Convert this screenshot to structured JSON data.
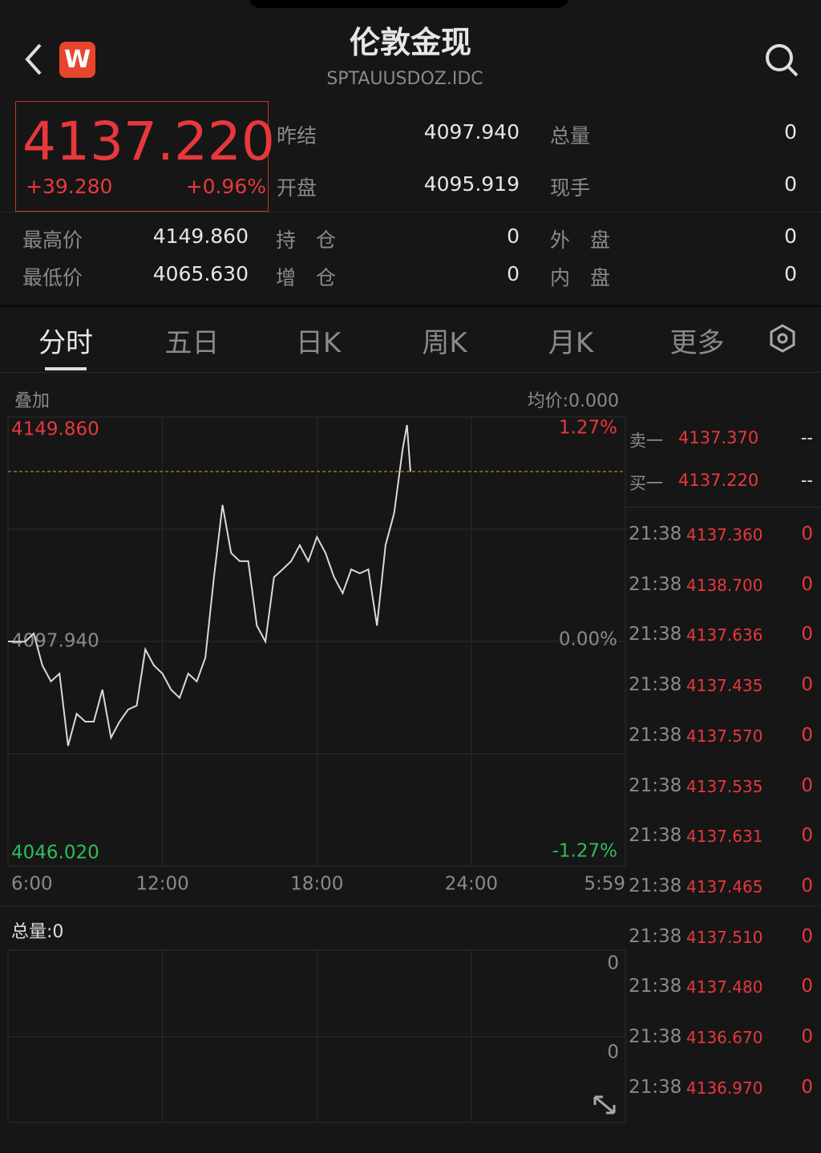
{
  "header": {
    "title": "伦敦金现",
    "code": "SPTAUUSDOZ.IDC",
    "badge": "W"
  },
  "quote": {
    "price": "4137.220",
    "change": "+39.280",
    "change_pct": "+0.96%"
  },
  "stats": {
    "top": [
      [
        "昨结",
        "4097.940",
        "总量",
        "0"
      ],
      [
        "开盘",
        "4095.919",
        "现手",
        "0"
      ]
    ],
    "bottom": [
      [
        "最高价",
        "4149.860",
        "持　仓",
        "0",
        "外　盘",
        "0"
      ],
      [
        "最低价",
        "4065.630",
        "增　仓",
        "0",
        "内　盘",
        "0"
      ]
    ]
  },
  "tabs": [
    "分时",
    "五日",
    "日K",
    "周K",
    "月K",
    "更多"
  ],
  "chart_header": {
    "left": "叠加",
    "right": "均价:0.000"
  },
  "chart_data": {
    "type": "line",
    "x": [
      "6:00",
      "6:20",
      "6:40",
      "7:00",
      "7:20",
      "7:40",
      "8:00",
      "8:20",
      "8:40",
      "9:00",
      "9:20",
      "9:40",
      "10:00",
      "10:20",
      "10:40",
      "11:00",
      "11:20",
      "11:40",
      "12:00",
      "12:20",
      "12:40",
      "13:00",
      "13:20",
      "13:40",
      "14:00",
      "14:20",
      "14:40",
      "15:00",
      "15:20",
      "15:40",
      "16:00",
      "16:20",
      "16:40",
      "17:00",
      "17:20",
      "17:40",
      "18:00",
      "18:20",
      "18:40",
      "19:00",
      "19:20",
      "19:40",
      "20:00",
      "20:20",
      "20:40",
      "21:00",
      "21:20",
      "21:30",
      "21:38"
    ],
    "series": [
      {
        "color": "#d9d9d9",
        "values": [
          4097.94,
          4097.9,
          4097.9,
          4099.8,
          4092.4,
          4088.7,
          4090.5,
          4073.8,
          4081.2,
          4079.4,
          4079.4,
          4086.8,
          4075.7,
          4079.4,
          4082.2,
          4083.1,
          4096.1,
          4092.4,
          4090.5,
          4086.8,
          4084.9,
          4090.5,
          4088.7,
          4094.2,
          4112.8,
          4129.5,
          4118.4,
          4116.5,
          4116.5,
          4101.6,
          4097.9,
          4112.8,
          4114.6,
          4116.5,
          4120.2,
          4116.5,
          4122.1,
          4118.4,
          4112.8,
          4109.1,
          4114.6,
          4113.7,
          4114.6,
          4101.6,
          4120.2,
          4127.6,
          4142.5,
          4148.0,
          4137.22
        ]
      }
    ],
    "xlim": [
      "6:00",
      "5:59"
    ],
    "xticks": [
      "6:00",
      "12:00",
      "18:00",
      "24:00",
      "5:59"
    ],
    "ylim": [
      4046.02,
      4149.86
    ],
    "yticks": [
      {
        "value": 4046.02,
        "label": "4046.020"
      },
      {
        "value": 4097.94,
        "label": "4097.940"
      },
      {
        "value": 4149.86,
        "label": "4149.860"
      }
    ],
    "y2lim": [
      -1.27,
      1.27
    ],
    "y2ticks": [
      {
        "value": -1.27,
        "label": "-1.27%"
      },
      {
        "value": 0,
        "label": "0.00%"
      },
      {
        "value": 1.27,
        "label": "1.27%"
      }
    ],
    "reference_line": 4137.22
  },
  "volume": {
    "title": "总量:0",
    "axis_labels": [
      "0",
      "0"
    ]
  },
  "order_book": [
    [
      "卖一",
      "4137.370",
      "--"
    ],
    [
      "买一",
      "4137.220",
      "--"
    ]
  ],
  "trades": [
    [
      "21:38",
      "4137.360",
      "0"
    ],
    [
      "21:38",
      "4138.700",
      "0"
    ],
    [
      "21:38",
      "4137.636",
      "0"
    ],
    [
      "21:38",
      "4137.435",
      "0"
    ],
    [
      "21:38",
      "4137.570",
      "0"
    ],
    [
      "21:38",
      "4137.535",
      "0"
    ],
    [
      "21:38",
      "4137.631",
      "0"
    ],
    [
      "21:38",
      "4137.465",
      "0"
    ],
    [
      "21:38",
      "4137.510",
      "0"
    ],
    [
      "21:38",
      "4137.480",
      "0"
    ],
    [
      "21:38",
      "4136.670",
      "0"
    ],
    [
      "21:38",
      "4136.970",
      "0"
    ]
  ]
}
